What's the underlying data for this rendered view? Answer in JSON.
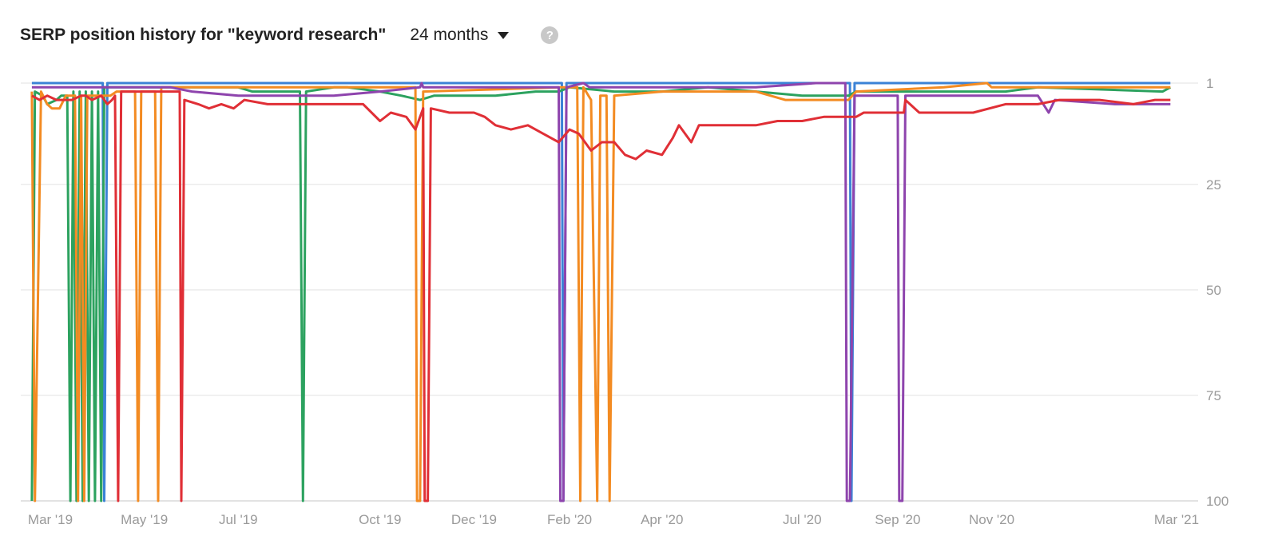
{
  "header": {
    "title": "SERP position history for \"keyword research\"",
    "range_label": "24 months",
    "help_symbol": "?",
    "dropdown_icon": "caret-down-icon",
    "help_icon": "question-circle-icon"
  },
  "chart_data": {
    "type": "line",
    "title": "SERP position history for \"keyword research\"",
    "x_range": [
      "2019-02-15",
      "2021-03-15"
    ],
    "x_ticks": [
      "Mar '19",
      "May '19",
      "Jul '19",
      "Oct '19",
      "Dec '19",
      "Feb '20",
      "Apr '20",
      "Jul '20",
      "Sep '20",
      "Nov '20",
      "Mar '21"
    ],
    "x_tick_dates": [
      "2019-03-01",
      "2019-05-01",
      "2019-07-01",
      "2019-10-01",
      "2019-12-01",
      "2020-02-01",
      "2020-04-01",
      "2020-07-01",
      "2020-09-01",
      "2020-11-01",
      "2021-03-01"
    ],
    "y_axis": {
      "min": 1,
      "max": 100,
      "inverted": true,
      "ticks": [
        1,
        25,
        50,
        75,
        100
      ],
      "position": "right"
    },
    "grid": true,
    "series": [
      {
        "color": "#3b82d6",
        "points": [
          [
            "2019-02-17",
            1
          ],
          [
            "2019-04-04",
            1
          ],
          [
            "2019-04-05",
            100
          ],
          [
            "2019-04-07",
            1
          ],
          [
            "2020-01-27",
            1
          ],
          [
            "2020-01-28",
            100
          ],
          [
            "2020-01-30",
            1
          ],
          [
            "2020-08-01",
            1
          ],
          [
            "2020-08-02",
            100
          ],
          [
            "2020-08-04",
            1
          ],
          [
            "2021-02-25",
            1
          ]
        ]
      },
      {
        "color": "#2ca25f",
        "points": [
          [
            "2019-02-17",
            100
          ],
          [
            "2019-02-19",
            3
          ],
          [
            "2019-02-24",
            4
          ],
          [
            "2019-02-27",
            6
          ],
          [
            "2019-03-05",
            5
          ],
          [
            "2019-03-08",
            4
          ],
          [
            "2019-03-12",
            4
          ],
          [
            "2019-03-14",
            100
          ],
          [
            "2019-03-16",
            3
          ],
          [
            "2019-03-18",
            100
          ],
          [
            "2019-03-20",
            3
          ],
          [
            "2019-03-22",
            100
          ],
          [
            "2019-03-24",
            3
          ],
          [
            "2019-03-26",
            100
          ],
          [
            "2019-03-28",
            3
          ],
          [
            "2019-03-30",
            100
          ],
          [
            "2019-04-01",
            3
          ],
          [
            "2019-04-03",
            100
          ],
          [
            "2019-04-05",
            2
          ],
          [
            "2019-04-12",
            2
          ],
          [
            "2019-04-17",
            2
          ],
          [
            "2019-05-18",
            2
          ],
          [
            "2019-06-01",
            2
          ],
          [
            "2019-07-01",
            2
          ],
          [
            "2019-07-10",
            3
          ],
          [
            "2019-08-10",
            3
          ],
          [
            "2019-08-12",
            100
          ],
          [
            "2019-08-14",
            3
          ],
          [
            "2019-09-01",
            2
          ],
          [
            "2019-09-10",
            2
          ],
          [
            "2019-10-01",
            3
          ],
          [
            "2019-10-15",
            4
          ],
          [
            "2019-10-27",
            5
          ],
          [
            "2019-11-05",
            4
          ],
          [
            "2019-12-01",
            4
          ],
          [
            "2019-12-15",
            4
          ],
          [
            "2020-01-10",
            3
          ],
          [
            "2020-01-25",
            3
          ],
          [
            "2020-02-01",
            2
          ],
          [
            "2020-03-01",
            3
          ],
          [
            "2020-04-01",
            3
          ],
          [
            "2020-05-01",
            2
          ],
          [
            "2020-07-01",
            4
          ],
          [
            "2020-07-31",
            4
          ],
          [
            "2020-08-05",
            3
          ],
          [
            "2020-11-10",
            3
          ],
          [
            "2020-12-01",
            2
          ],
          [
            "2021-02-20",
            3
          ],
          [
            "2021-02-25",
            2
          ]
        ]
      },
      {
        "color": "#f38b22",
        "points": [
          [
            "2019-02-17",
            3
          ],
          [
            "2019-02-19",
            100
          ],
          [
            "2019-02-23",
            3
          ],
          [
            "2019-02-27",
            6
          ],
          [
            "2019-03-02",
            7
          ],
          [
            "2019-03-07",
            7
          ],
          [
            "2019-03-11",
            4
          ],
          [
            "2019-03-17",
            4
          ],
          [
            "2019-03-19",
            100
          ],
          [
            "2019-03-21",
            4
          ],
          [
            "2019-03-23",
            100
          ],
          [
            "2019-03-25",
            4
          ],
          [
            "2019-03-29",
            4
          ],
          [
            "2019-04-01",
            4
          ],
          [
            "2019-04-09",
            4
          ],
          [
            "2019-04-13",
            3
          ],
          [
            "2019-04-25",
            3
          ],
          [
            "2019-04-27",
            100
          ],
          [
            "2019-04-29",
            3
          ],
          [
            "2019-05-08",
            3
          ],
          [
            "2019-05-10",
            100
          ],
          [
            "2019-05-12",
            2
          ],
          [
            "2019-07-01",
            2
          ],
          [
            "2019-10-24",
            2
          ],
          [
            "2019-10-25",
            100
          ],
          [
            "2019-10-27",
            100
          ],
          [
            "2019-10-29",
            3
          ],
          [
            "2020-01-27",
            2
          ],
          [
            "2020-02-06",
            2
          ],
          [
            "2020-02-08",
            100
          ],
          [
            "2020-02-10",
            2
          ],
          [
            "2020-02-15",
            5
          ],
          [
            "2020-02-19",
            100
          ],
          [
            "2020-02-21",
            4
          ],
          [
            "2020-02-25",
            4
          ],
          [
            "2020-02-27",
            100
          ],
          [
            "2020-03-01",
            4
          ],
          [
            "2020-04-01",
            3
          ],
          [
            "2020-06-01",
            3
          ],
          [
            "2020-06-20",
            5
          ],
          [
            "2020-07-31",
            5
          ],
          [
            "2020-08-05",
            3
          ],
          [
            "2020-10-01",
            2
          ],
          [
            "2020-10-29",
            1
          ],
          [
            "2020-11-01",
            2
          ],
          [
            "2021-02-25",
            2
          ]
        ]
      },
      {
        "color": "#8e44ad",
        "points": [
          [
            "2019-02-17",
            2
          ],
          [
            "2019-04-12",
            2
          ],
          [
            "2019-05-18",
            2
          ],
          [
            "2019-06-01",
            3
          ],
          [
            "2019-07-01",
            4
          ],
          [
            "2019-09-01",
            4
          ],
          [
            "2019-10-01",
            3
          ],
          [
            "2019-10-27",
            2
          ],
          [
            "2019-10-28",
            1
          ],
          [
            "2019-10-29",
            2
          ],
          [
            "2020-01-25",
            2
          ],
          [
            "2020-01-26",
            100
          ],
          [
            "2020-01-28",
            100
          ],
          [
            "2020-01-30",
            2
          ],
          [
            "2020-02-10",
            1
          ],
          [
            "2020-02-14",
            2
          ],
          [
            "2020-06-01",
            2
          ],
          [
            "2020-07-10",
            1
          ],
          [
            "2020-07-29",
            1
          ],
          [
            "2020-07-30",
            100
          ],
          [
            "2020-08-01",
            100
          ],
          [
            "2020-08-04",
            4
          ],
          [
            "2020-09-01",
            4
          ],
          [
            "2020-09-02",
            100
          ],
          [
            "2020-09-04",
            100
          ],
          [
            "2020-09-06",
            4
          ],
          [
            "2020-12-01",
            4
          ],
          [
            "2020-12-08",
            8
          ],
          [
            "2020-12-12",
            5
          ],
          [
            "2021-01-20",
            6
          ],
          [
            "2021-02-25",
            6
          ]
        ]
      },
      {
        "color": "#e02f36",
        "points": [
          [
            "2019-02-17",
            4
          ],
          [
            "2019-02-22",
            5
          ],
          [
            "2019-02-27",
            4
          ],
          [
            "2019-03-05",
            5
          ],
          [
            "2019-03-15",
            5
          ],
          [
            "2019-03-21",
            4
          ],
          [
            "2019-03-24",
            4
          ],
          [
            "2019-03-28",
            5
          ],
          [
            "2019-04-03",
            4
          ],
          [
            "2019-04-07",
            6
          ],
          [
            "2019-04-10",
            5
          ],
          [
            "2019-04-12",
            4
          ],
          [
            "2019-04-14",
            100
          ],
          [
            "2019-04-16",
            3
          ],
          [
            "2019-05-24",
            3
          ],
          [
            "2019-05-25",
            100
          ],
          [
            "2019-05-27",
            5
          ],
          [
            "2019-06-05",
            6
          ],
          [
            "2019-06-12",
            7
          ],
          [
            "2019-06-20",
            6
          ],
          [
            "2019-06-28",
            7
          ],
          [
            "2019-07-05",
            5
          ],
          [
            "2019-07-20",
            6
          ],
          [
            "2019-08-10",
            6
          ],
          [
            "2019-09-01",
            6
          ],
          [
            "2019-09-20",
            6
          ],
          [
            "2019-10-01",
            10
          ],
          [
            "2019-10-08",
            8
          ],
          [
            "2019-10-18",
            9
          ],
          [
            "2019-10-24",
            12
          ],
          [
            "2019-10-29",
            7
          ],
          [
            "2019-10-30",
            100
          ],
          [
            "2019-11-01",
            100
          ],
          [
            "2019-11-03",
            7
          ],
          [
            "2019-11-15",
            8
          ],
          [
            "2019-12-01",
            8
          ],
          [
            "2019-12-08",
            9
          ],
          [
            "2019-12-15",
            11
          ],
          [
            "2019-12-25",
            12
          ],
          [
            "2020-01-05",
            11
          ],
          [
            "2020-01-15",
            13
          ],
          [
            "2020-01-25",
            15
          ],
          [
            "2020-02-01",
            12
          ],
          [
            "2020-02-07",
            13
          ],
          [
            "2020-02-15",
            17
          ],
          [
            "2020-02-22",
            15
          ],
          [
            "2020-03-01",
            15
          ],
          [
            "2020-03-08",
            18
          ],
          [
            "2020-03-15",
            19
          ],
          [
            "2020-03-22",
            17
          ],
          [
            "2020-04-01",
            18
          ],
          [
            "2020-04-08",
            14
          ],
          [
            "2020-04-12",
            11
          ],
          [
            "2020-04-20",
            15
          ],
          [
            "2020-04-25",
            11
          ],
          [
            "2020-05-05",
            11
          ],
          [
            "2020-06-01",
            11
          ],
          [
            "2020-06-15",
            10
          ],
          [
            "2020-07-01",
            10
          ],
          [
            "2020-07-15",
            9
          ],
          [
            "2020-08-05",
            9
          ],
          [
            "2020-08-10",
            8
          ],
          [
            "2020-09-05",
            8
          ],
          [
            "2020-09-06",
            5
          ],
          [
            "2020-09-15",
            8
          ],
          [
            "2020-10-01",
            8
          ],
          [
            "2020-10-20",
            8
          ],
          [
            "2020-11-10",
            6
          ],
          [
            "2020-12-01",
            6
          ],
          [
            "2020-12-15",
            5
          ],
          [
            "2021-01-10",
            5
          ],
          [
            "2021-02-01",
            6
          ],
          [
            "2021-02-15",
            5
          ],
          [
            "2021-02-22",
            5
          ],
          [
            "2021-02-25",
            5
          ]
        ]
      }
    ]
  }
}
